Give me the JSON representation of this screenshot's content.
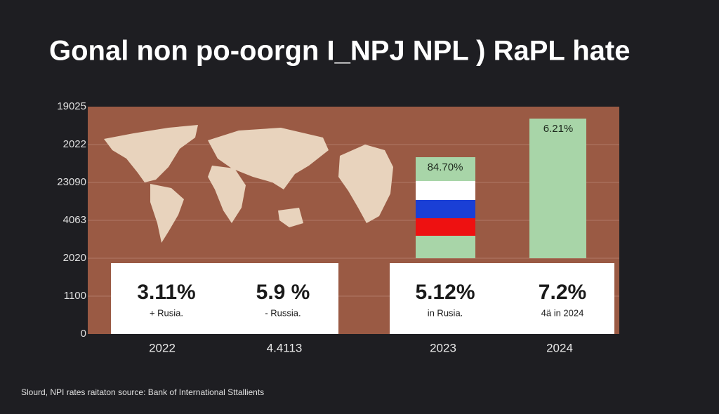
{
  "title": "Gonal non po-oorgn I_NPJ NPL ) RaPL hate",
  "y_axis_labels": [
    "19025",
    "2022",
    "23090",
    "4063",
    "2020",
    "1100",
    "0"
  ],
  "bars": [
    {
      "label": "84.70%"
    },
    {
      "label": "6.21%"
    }
  ],
  "cards": [
    {
      "value": "3.11%",
      "caption": "+ Rusia."
    },
    {
      "value": "5.9 %",
      "caption": "- Russia."
    },
    {
      "value": "5.12%",
      "caption": "in Rusia."
    },
    {
      "value": "7.2%",
      "caption": "4ä in 2024"
    }
  ],
  "x_labels": [
    "2022",
    "4.4113",
    "2023",
    "2024"
  ],
  "footer": "Slourd, NPI rates raitaton source: Bank of International Sttallients"
}
